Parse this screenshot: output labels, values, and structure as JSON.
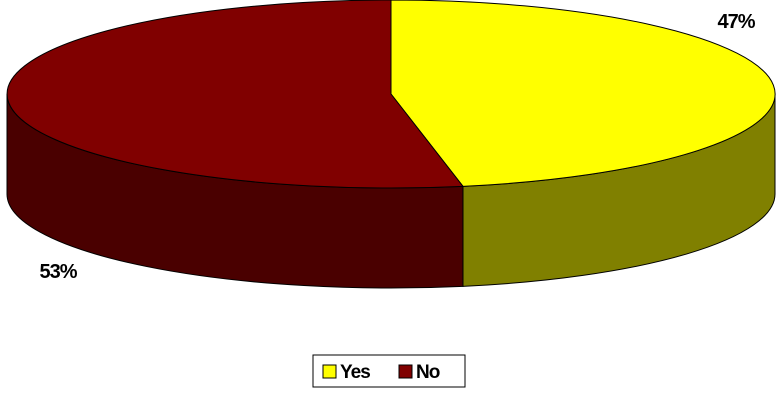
{
  "chart_data": {
    "type": "pie",
    "style": "3d",
    "categories": [
      "Yes",
      "No"
    ],
    "values": [
      47,
      53
    ],
    "data_labels": [
      "47%",
      "53%"
    ],
    "colors": {
      "Yes": {
        "top": "#ffff00",
        "side": "#808000"
      },
      "No": {
        "top": "#800000",
        "side": "#4a0000"
      }
    },
    "legend_position": "bottom"
  }
}
